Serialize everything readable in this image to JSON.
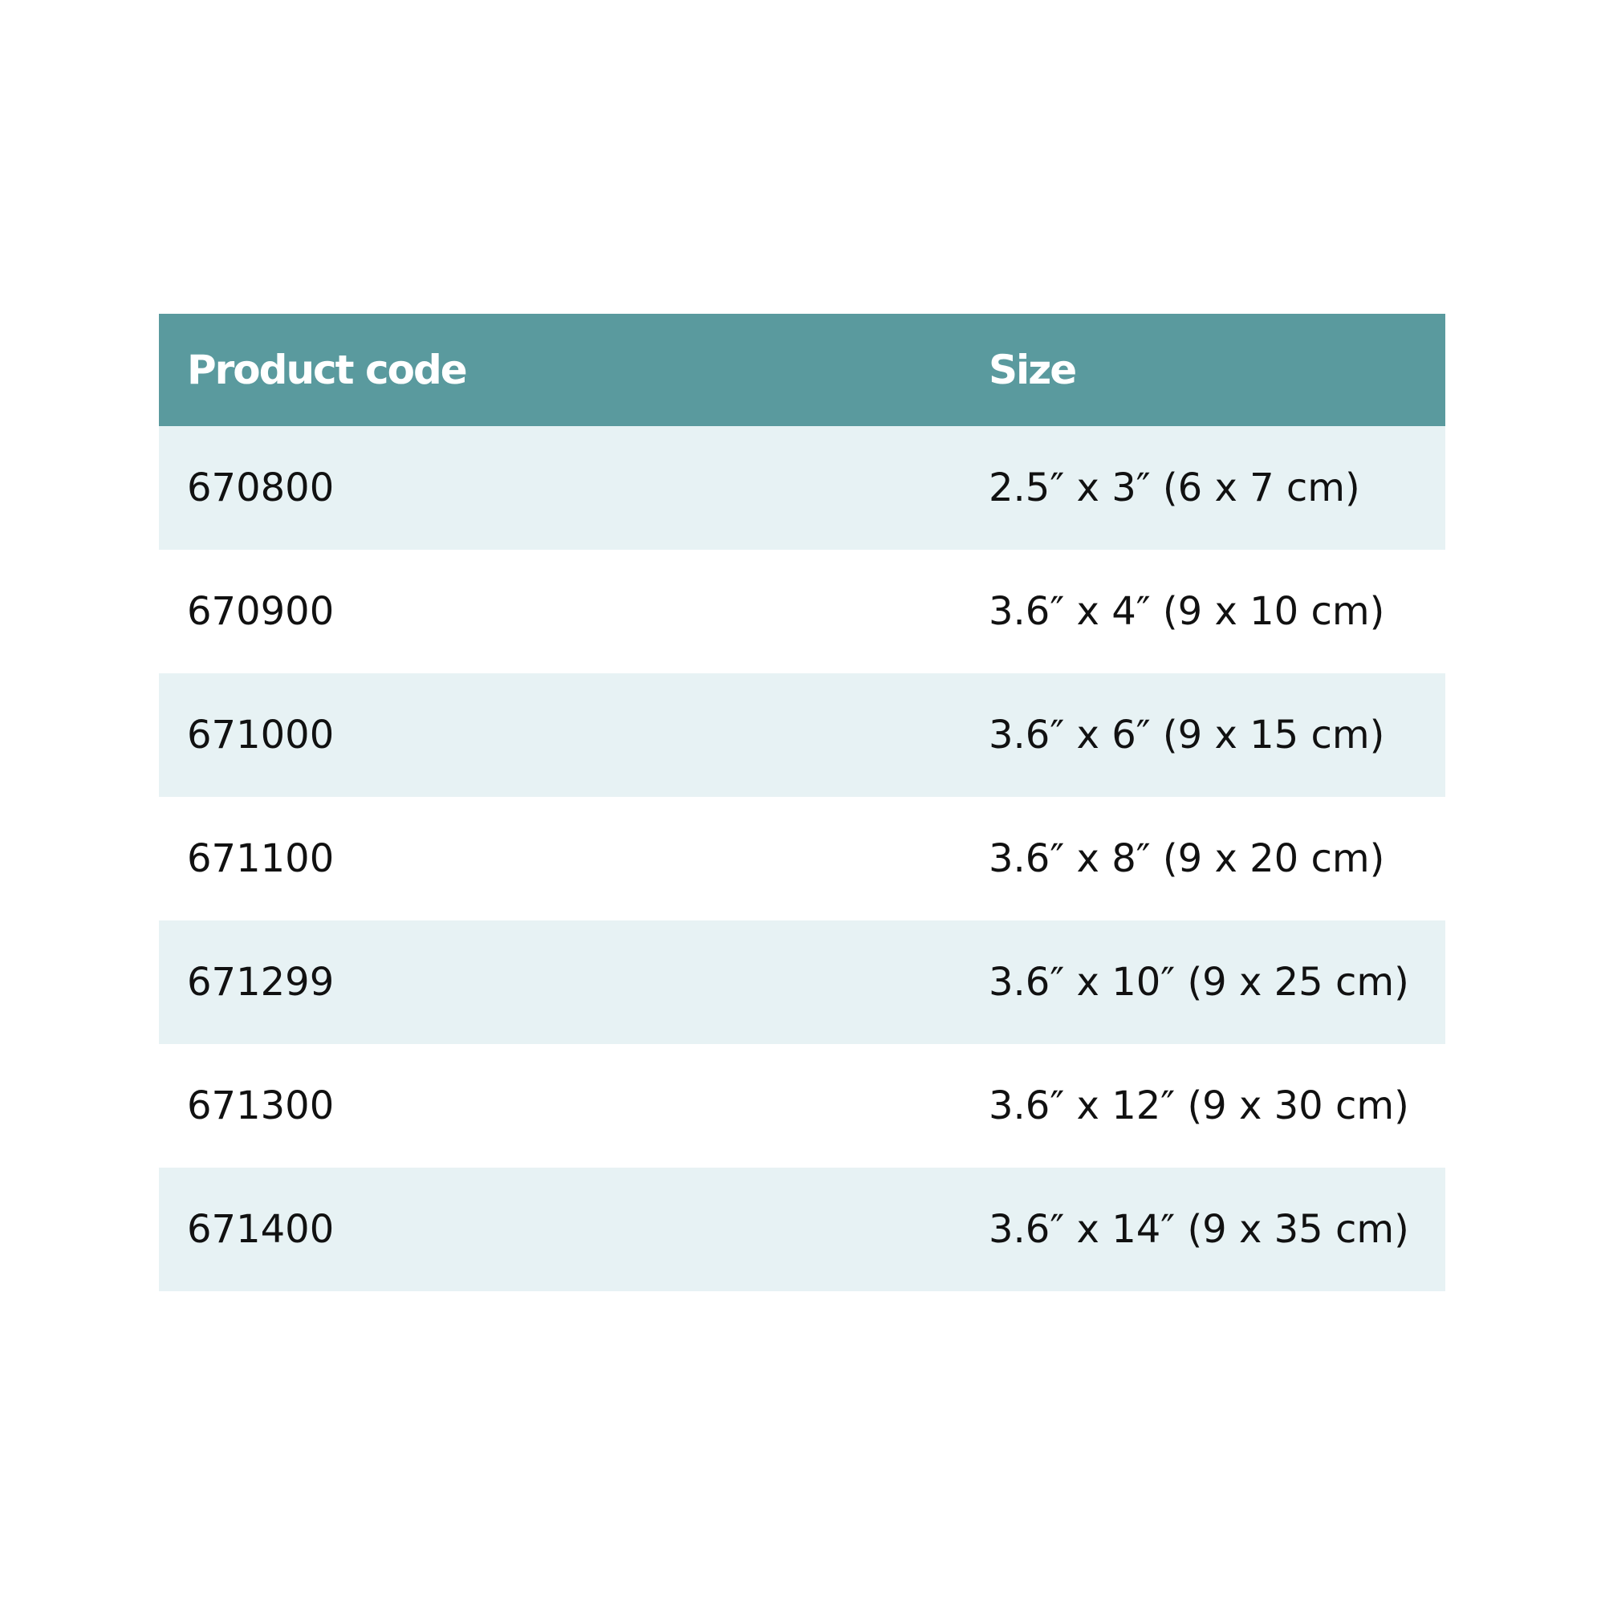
{
  "table": {
    "headers": [
      "Product code",
      "Size"
    ],
    "header_color": "#5a9a9e",
    "stripe_color": "#e7f2f4",
    "rows": [
      [
        "670800",
        "2.5″ x 3″ (6 x 7 cm)"
      ],
      [
        "670900",
        "3.6″ x 4″ (9 x 10 cm)"
      ],
      [
        "671000",
        "3.6″ x 6″ (9 x 15 cm)"
      ],
      [
        "671100",
        "3.6″ x 8″ (9 x 20 cm)"
      ],
      [
        "671299",
        "3.6″ x 10″ (9 x 25 cm)"
      ],
      [
        "671300",
        "3.6″ x 12″ (9 x 30 cm)"
      ],
      [
        "671400",
        "3.6″ x 14″ (9 x 35 cm)"
      ]
    ]
  }
}
